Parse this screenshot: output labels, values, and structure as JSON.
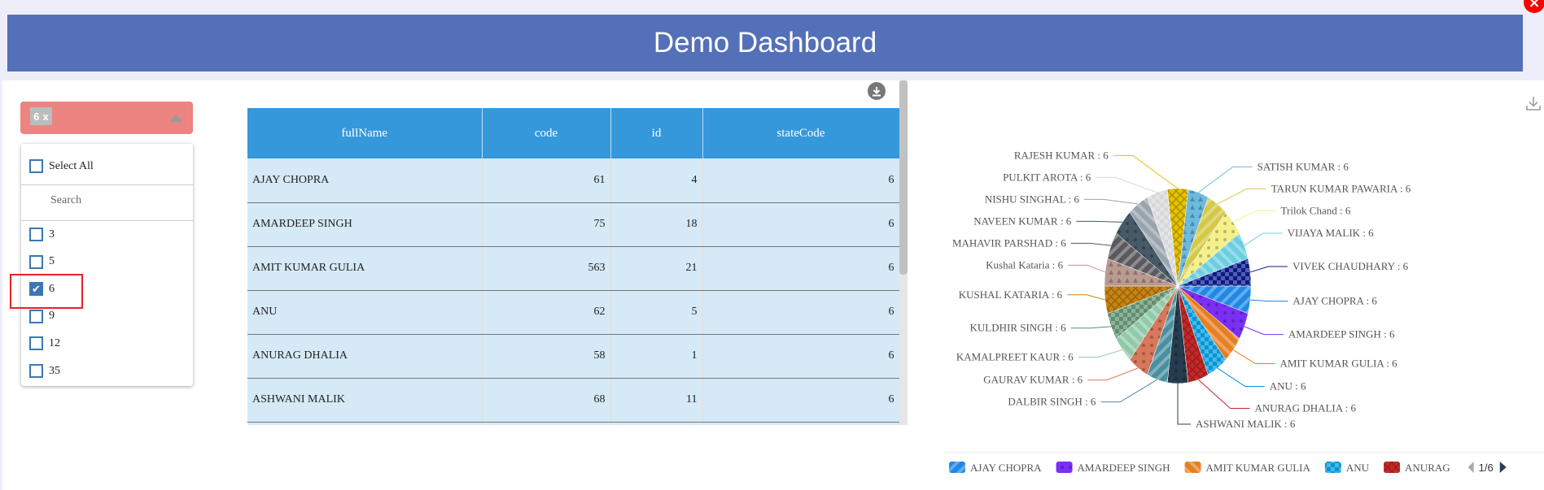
{
  "header": {
    "title": "Demo Dashboard"
  },
  "filter": {
    "chip_value": "6",
    "chip_remove": "x",
    "select_all": "Select All",
    "search_placeholder": "Search",
    "options": [
      {
        "label": "3",
        "checked": false
      },
      {
        "label": "5",
        "checked": false
      },
      {
        "label": "6",
        "checked": true
      },
      {
        "label": "9",
        "checked": false
      },
      {
        "label": "12",
        "checked": false
      },
      {
        "label": "35",
        "checked": false
      }
    ]
  },
  "table": {
    "columns": [
      "fullName",
      "code",
      "id",
      "stateCode"
    ],
    "rows": [
      [
        "AJAY CHOPRA",
        "61",
        "4",
        "6"
      ],
      [
        "AMARDEEP SINGH",
        "75",
        "18",
        "6"
      ],
      [
        "AMIT KUMAR GULIA",
        "563",
        "21",
        "6"
      ],
      [
        "ANU",
        "62",
        "5",
        "6"
      ],
      [
        "ANURAG DHALIA",
        "58",
        "1",
        "6"
      ],
      [
        "ASHWANI MALIK",
        "68",
        "11",
        "6"
      ],
      [
        "",
        "",
        "",
        ""
      ]
    ]
  },
  "chart_data": {
    "type": "pie",
    "label_format": "{name} : {value}",
    "slices": [
      {
        "name": "AJAY CHOPRA",
        "value": 6,
        "color": "#1e88e5"
      },
      {
        "name": "AMARDEEP SINGH",
        "value": 6,
        "color": "#7b2ff7"
      },
      {
        "name": "AMIT KUMAR GULIA",
        "value": 6,
        "color": "#e67e22"
      },
      {
        "name": "ANU",
        "value": 6,
        "color": "#0097d8"
      },
      {
        "name": "ANURAG DHALIA",
        "value": 6,
        "color": "#c62828"
      },
      {
        "name": "ASHWANI MALIK",
        "value": 6,
        "color": "#263d4f"
      },
      {
        "name": "DALBIR SINGH",
        "value": 6,
        "color": "#4a8fa0"
      },
      {
        "name": "GAURAV KUMAR",
        "value": 6,
        "color": "#d9775a"
      },
      {
        "name": "KAMALPREET KAUR",
        "value": 6,
        "color": "#8fc9a8"
      },
      {
        "name": "KULDHIR SINGH",
        "value": 6,
        "color": "#5e8f6e"
      },
      {
        "name": "KUSHAL KATARIA",
        "value": 6,
        "color": "#c88412"
      },
      {
        "name": "Kushal Kataria",
        "value": 6,
        "color": "#b89a90"
      },
      {
        "name": "MAHAVIR PARSHAD",
        "value": 6,
        "color": "#5a5a5e"
      },
      {
        "name": "NAVEEN KUMAR",
        "value": 6,
        "color": "#465a68"
      },
      {
        "name": "NISHU SINGHAL",
        "value": 6,
        "color": "#9aa4ae"
      },
      {
        "name": "PULKIT AROTA",
        "value": 6,
        "color": "#d8d8d8"
      },
      {
        "name": "RAJESH KUMAR",
        "value": 6,
        "color": "#e6c200"
      },
      {
        "name": "SATISH KUMAR",
        "value": 6,
        "color": "#6cbadf"
      },
      {
        "name": "TARUN KUMAR PAWARIA",
        "value": 6,
        "color": "#d4c848"
      },
      {
        "name": "Trilok Chand",
        "value": 6,
        "color": "#f5f08a"
      },
      {
        "name": "VIJAYA MALIK",
        "value": 6,
        "color": "#6ccfe0"
      },
      {
        "name": "VIVEK CHAUDHARY",
        "value": 6,
        "color": "#0a1a8a"
      }
    ],
    "legend": {
      "placement": "bottom",
      "visible_items": [
        "AJAY CHOPRA",
        "AMARDEEP SINGH",
        "AMIT KUMAR GULIA",
        "ANU",
        "ANURAG"
      ],
      "page": "1/6"
    }
  },
  "icons": {
    "close": "close-icon",
    "table_download": "download-circle-icon",
    "chart_download": "download-icon"
  }
}
